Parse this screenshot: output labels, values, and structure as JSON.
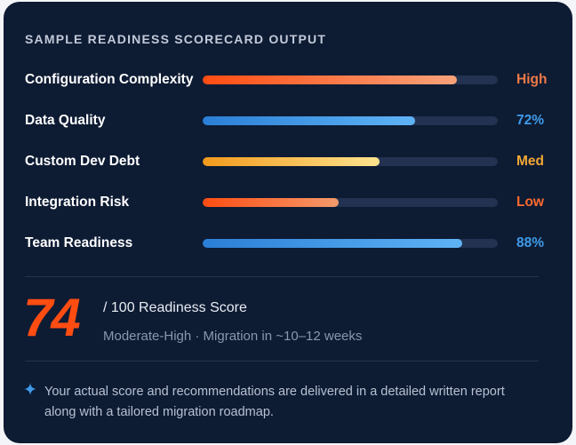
{
  "card": {
    "heading": "SAMPLE READINESS SCORECARD OUTPUT",
    "metrics": [
      {
        "label": "Configuration Complexity",
        "value": "High",
        "level": 0.86,
        "color": "#f07a45",
        "gradient": [
          "#ff4d12",
          "#f8a27a"
        ]
      },
      {
        "label": "Data Quality",
        "value": "72%",
        "level": 0.72,
        "color": "#3f9be8",
        "gradient": [
          "#2a7fd6",
          "#5fb3f5"
        ]
      },
      {
        "label": "Custom Dev Debt",
        "value": "Med",
        "level": 0.6,
        "color": "#f4a935",
        "gradient": [
          "#f29a1c",
          "#fde38e"
        ]
      },
      {
        "label": "Integration Risk",
        "value": "Low",
        "level": 0.46,
        "color": "#ff6a2f",
        "gradient": [
          "#ff4d12",
          "#f39a6c"
        ]
      },
      {
        "label": "Team Readiness",
        "value": "88%",
        "level": 0.88,
        "color": "#3f9be8",
        "gradient": [
          "#2a7fd6",
          "#5fb3f5"
        ]
      }
    ],
    "score": {
      "number": "74",
      "label": "/ 100 Readiness Score",
      "subtitle": "Moderate-High · Migration in ~10–12 weeks",
      "color": "#ff4d12"
    },
    "note": {
      "icon": "sparkle-icon",
      "text": "Your actual score and recommendations are delivered in a detailed written report along with a tailored migration roadmap."
    }
  }
}
